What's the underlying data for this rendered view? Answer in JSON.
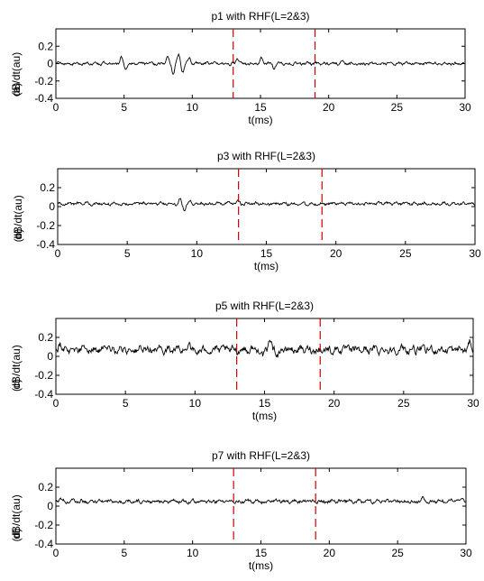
{
  "chart_data": [
    {
      "type": "line",
      "panel_label": "(a)",
      "title": "p1 with RHF(L=2&3)",
      "xlabel": "t(ms)",
      "ylabel": "dB/dt(au)",
      "xlim": [
        0,
        30
      ],
      "ylim": [
        -0.4,
        0.4
      ],
      "xticks": [
        0,
        5,
        10,
        15,
        20,
        25,
        30
      ],
      "xtick_labels": [
        "0",
        "5",
        "10",
        "15",
        "20",
        "25",
        "30"
      ],
      "yticks": [
        0.2,
        0,
        -0.2,
        -0.4
      ],
      "ytick_labels": [
        "0.2",
        "0",
        "-0.2",
        "-0.4"
      ],
      "baseline": 0.0,
      "markers": [
        13,
        19
      ],
      "marker_color": "#cc0000",
      "line_color": "#000000",
      "features": [
        {
          "t": 4.8,
          "amp": 0.08
        },
        {
          "t": 5.1,
          "amp": -0.06
        },
        {
          "t": 8.2,
          "amp": 0.09
        },
        {
          "t": 8.6,
          "amp": -0.12
        },
        {
          "t": 9.0,
          "amp": 0.11
        },
        {
          "t": 9.3,
          "amp": -0.1
        },
        {
          "t": 9.8,
          "amp": 0.08
        },
        {
          "t": 13.3,
          "amp": 0.05
        },
        {
          "t": 15.1,
          "amp": 0.06
        },
        {
          "t": 16.0,
          "amp": -0.05
        },
        {
          "t": 21.0,
          "amp": 0.04
        }
      ],
      "noise": 0.012
    },
    {
      "type": "line",
      "panel_label": "(b)",
      "title": "p3 with RHF(L=2&3)",
      "xlabel": "t(ms)",
      "ylabel": "dB/dt(au)",
      "xlim": [
        0,
        30
      ],
      "ylim": [
        -0.4,
        0.4
      ],
      "xticks": [
        0,
        5,
        10,
        15,
        20,
        25,
        30
      ],
      "xtick_labels": [
        "0",
        "5",
        "10",
        "15",
        "20",
        "25",
        "30"
      ],
      "yticks": [
        0.2,
        0,
        -0.2,
        -0.4
      ],
      "ytick_labels": [
        "0.2",
        "0",
        "-0.2",
        "-0.4"
      ],
      "baseline": 0.03,
      "markers": [
        13,
        19
      ],
      "marker_color": "#cc0000",
      "line_color": "#000000",
      "features": [
        {
          "t": 8.8,
          "amp": 0.05
        },
        {
          "t": 9.1,
          "amp": -0.06
        },
        {
          "t": 9.5,
          "amp": 0.04
        },
        {
          "t": 13.0,
          "amp": 0.03
        }
      ],
      "noise": 0.012
    },
    {
      "type": "line",
      "panel_label": "(c)",
      "title": "p5 with RHF(L=2&3)",
      "xlabel": "t(ms)",
      "ylabel": "dB/dt(au)",
      "xlim": [
        0,
        30
      ],
      "ylim": [
        -0.4,
        0.4
      ],
      "xticks": [
        0,
        5,
        10,
        15,
        20,
        25,
        30
      ],
      "xtick_labels": [
        "0",
        "5",
        "10",
        "15",
        "20",
        "25",
        "30"
      ],
      "yticks": [
        0.2,
        0,
        -0.2,
        -0.4
      ],
      "ytick_labels": [
        "0.2",
        "0",
        "-0.2",
        "-0.4"
      ],
      "baseline": 0.07,
      "markers": [
        13,
        19
      ],
      "marker_color": "#cc0000",
      "line_color": "#000000",
      "features": [
        {
          "t": 0.3,
          "amp": 0.08
        },
        {
          "t": 9.6,
          "amp": 0.09
        },
        {
          "t": 10.1,
          "amp": -0.06
        },
        {
          "t": 14.9,
          "amp": -0.07
        },
        {
          "t": 15.4,
          "amp": 0.11
        },
        {
          "t": 16.0,
          "amp": -0.05
        },
        {
          "t": 29.8,
          "amp": 0.08
        }
      ],
      "noise": 0.03
    },
    {
      "type": "line",
      "panel_label": "(d)",
      "title": "p7 with RHF(L=2&3)",
      "xlabel": "t(ms)",
      "ylabel": "dB/dt(au)",
      "xlim": [
        0,
        30
      ],
      "ylim": [
        -0.4,
        0.4
      ],
      "xticks": [
        0,
        5,
        10,
        15,
        20,
        25,
        30
      ],
      "xtick_labels": [
        "0",
        "5",
        "10",
        "15",
        "20",
        "25",
        "30"
      ],
      "yticks": [
        0.2,
        0,
        -0.2,
        -0.4
      ],
      "ytick_labels": [
        "0.2",
        "0",
        "-0.2",
        "-0.4"
      ],
      "baseline": 0.05,
      "markers": [
        13,
        19
      ],
      "marker_color": "#cc0000",
      "line_color": "#000000",
      "features": [
        {
          "t": 0.3,
          "amp": 0.03
        },
        {
          "t": 26.8,
          "amp": 0.04
        },
        {
          "t": 29.8,
          "amp": 0.04
        }
      ],
      "noise": 0.014
    }
  ]
}
